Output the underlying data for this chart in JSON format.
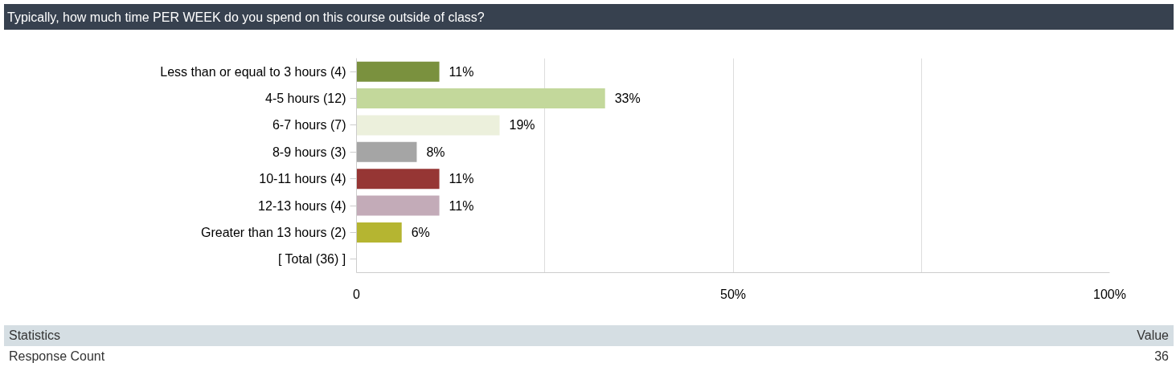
{
  "chart_data": {
    "type": "bar",
    "orientation": "horizontal",
    "title": "Typically, how much time PER WEEK do you spend on this course outside of class?",
    "categories": [
      "Less than or equal to 3 hours (4)",
      "4-5 hours (12)",
      "6-7 hours (7)",
      "8-9 hours (3)",
      "10-11 hours (4)",
      "12-13 hours (4)",
      "Greater than 13 hours (2)",
      "[ Total (36) ]"
    ],
    "values": [
      11,
      33,
      19,
      8,
      11,
      11,
      6,
      null
    ],
    "value_labels": [
      "11%",
      "33%",
      "19%",
      "8%",
      "11%",
      "11%",
      "6%",
      null
    ],
    "colors": [
      "#7a913e",
      "#c3d89b",
      "#ecf0dc",
      "#a5a5a5",
      "#963634",
      "#c3abb8",
      "#b5b531",
      null
    ],
    "xlim": [
      0,
      100
    ],
    "xticks": [
      0,
      {
        "value": 25,
        "label": null
      },
      {
        "value": 50,
        "label": "50%"
      },
      {
        "value": 75,
        "label": null
      },
      {
        "value": 100,
        "label": "100%"
      }
    ],
    "grid": "x",
    "annotations": [
      "Statistics",
      "Value",
      "Response Count",
      "36"
    ]
  }
}
